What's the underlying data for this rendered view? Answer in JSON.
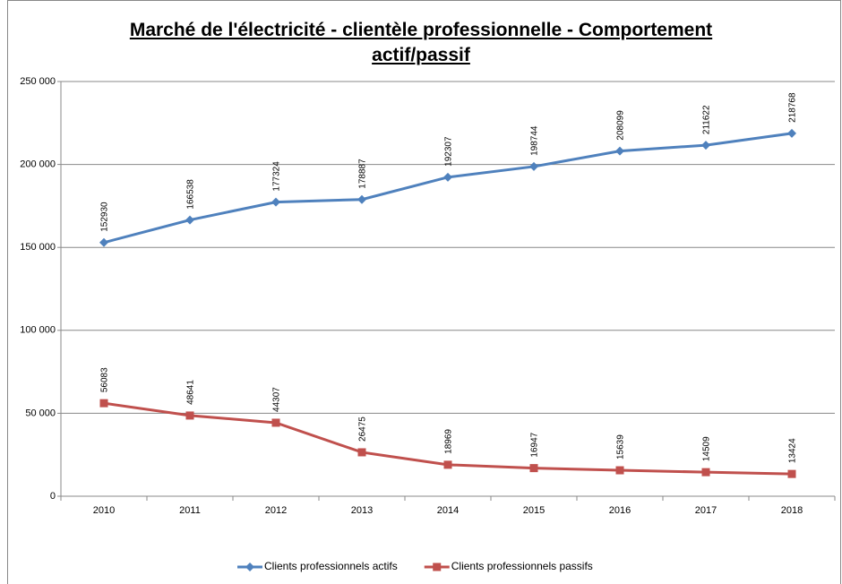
{
  "chart_data": {
    "type": "line",
    "title": "Marché de l'électricité - clientèle professionnelle - Comportement actif/passif",
    "categories": [
      "2010",
      "2011",
      "2012",
      "2013",
      "2014",
      "2015",
      "2016",
      "2017",
      "2018"
    ],
    "series": [
      {
        "name": "Clients professionnels actifs",
        "color": "#4f81bd",
        "marker": "diamond",
        "values": [
          152930,
          166538,
          177324,
          178887,
          192307,
          198744,
          208099,
          211622,
          218768
        ]
      },
      {
        "name": "Clients professionnels passifs",
        "color": "#c0504d",
        "marker": "square",
        "values": [
          56083,
          48641,
          44307,
          26475,
          18969,
          16947,
          15639,
          14509,
          13424
        ]
      }
    ],
    "ylim": [
      0,
      250000
    ],
    "yticks": [
      0,
      {
        "value": 50000,
        "label": "50 000"
      },
      {
        "value": 100000,
        "label": "100 000"
      },
      {
        "value": 150000,
        "label": "150 000"
      },
      {
        "value": 200000,
        "label": "200 000"
      },
      {
        "value": 250000,
        "label": "250 000"
      }
    ],
    "grid": true,
    "legend": "bottom",
    "data_labels": true
  }
}
